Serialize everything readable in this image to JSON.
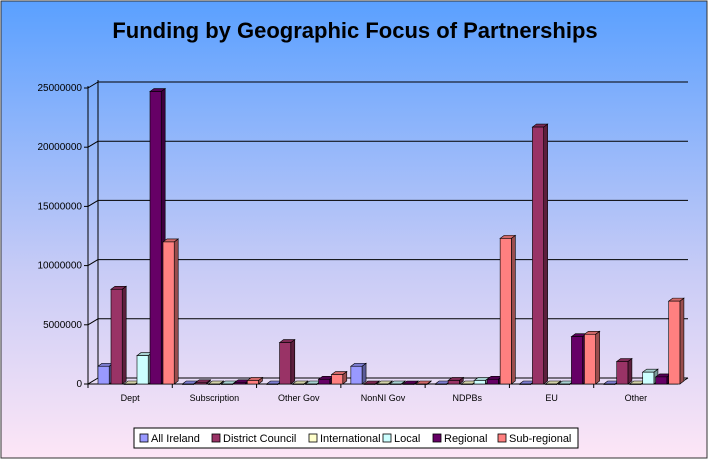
{
  "chart_data": {
    "type": "bar",
    "title": "Funding by Geographic Focus of Partnerships",
    "xlabel": "",
    "ylabel": "",
    "ylim": [
      0,
      25000000
    ],
    "yticks": [
      0,
      5000000,
      10000000,
      15000000,
      20000000,
      25000000
    ],
    "grid": true,
    "legend_position": "bottom",
    "categories": [
      "Dept",
      "Subscription",
      "Other Gov",
      "NonNI Gov",
      "NDPBs",
      "EU",
      "Other"
    ],
    "series": [
      {
        "name": "All Ireland",
        "color": "#9999FF",
        "values": [
          1500000,
          0,
          0,
          1500000,
          0,
          0,
          0
        ]
      },
      {
        "name": "District Council",
        "color": "#993366",
        "values": [
          8000000,
          100000,
          3500000,
          0,
          300000,
          21700000,
          1900000
        ]
      },
      {
        "name": "International",
        "color": "#FFFFCC",
        "values": [
          0,
          0,
          0,
          0,
          0,
          0,
          0
        ]
      },
      {
        "name": "Local",
        "color": "#CCFFFF",
        "values": [
          2400000,
          0,
          0,
          0,
          300000,
          0,
          1000000
        ]
      },
      {
        "name": "Regional",
        "color": "#660066",
        "values": [
          24700000,
          100000,
          400000,
          0,
          400000,
          4000000,
          600000
        ]
      },
      {
        "name": "Sub-regional",
        "color": "#FF8080",
        "values": [
          12000000,
          300000,
          800000,
          0,
          12300000,
          4200000,
          7000000
        ]
      }
    ]
  }
}
